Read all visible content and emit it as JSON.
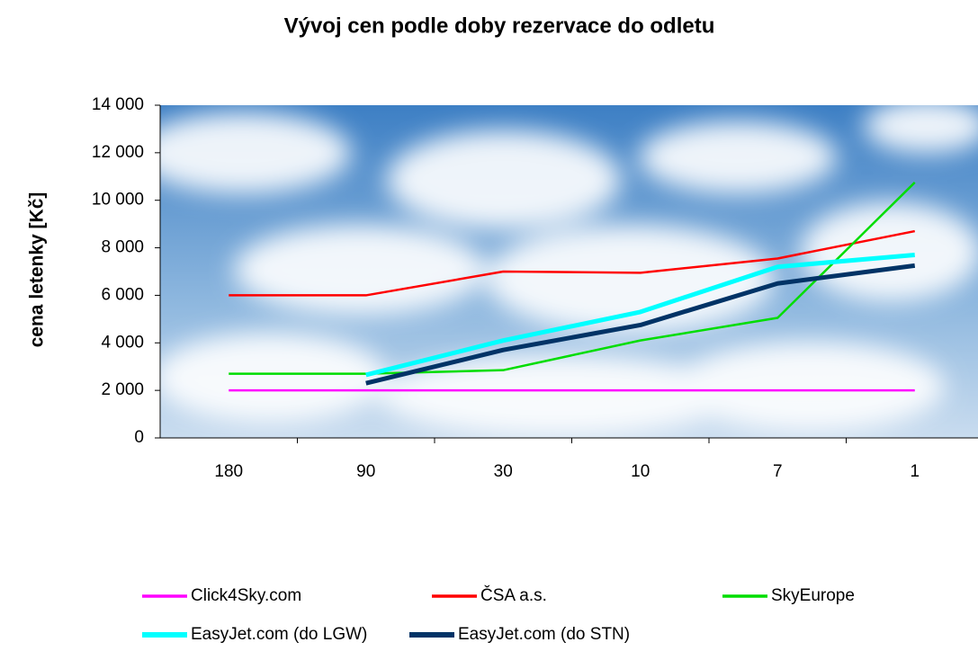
{
  "chart_data": {
    "type": "line",
    "title": "Vývoj cen podle doby rezervace do odletu",
    "y_label": "cena letenky [Kč]",
    "categories": [
      "180",
      "90",
      "30",
      "10",
      "7",
      "1"
    ],
    "ylim": [
      0,
      14000
    ],
    "yticks": [
      0,
      {
        "value": 2000,
        "label": "2 000"
      },
      {
        "value": 4000,
        "label": "4 000"
      },
      {
        "value": 6000,
        "label": "6 000"
      },
      {
        "value": 8000,
        "label": "8 000"
      },
      {
        "value": 10000,
        "label": "10 000"
      },
      {
        "value": 12000,
        "label": "12 000"
      },
      {
        "value": 14000,
        "label": "14 000"
      }
    ],
    "series": [
      {
        "name": "Click4Sky.com",
        "color": "#ff00ff",
        "values": [
          2000,
          2000,
          2000,
          2000,
          2000,
          2000
        ]
      },
      {
        "name": "ČSA a.s.",
        "color": "#ff0000",
        "values": [
          6000,
          6000,
          7000,
          6950,
          7550,
          8700
        ]
      },
      {
        "name": "SkyEurope",
        "color": "#00dd00",
        "values": [
          2700,
          2700,
          2850,
          4100,
          5050,
          10750
        ]
      },
      {
        "name": "EasyJet.com (do LGW)",
        "color": "#00ffff",
        "values": [
          null,
          2650,
          4100,
          5300,
          7200,
          7700
        ]
      },
      {
        "name": "EasyJet.com (do STN)",
        "color": "#003366",
        "values": [
          null,
          2300,
          3700,
          4750,
          6500,
          7250
        ]
      }
    ]
  }
}
